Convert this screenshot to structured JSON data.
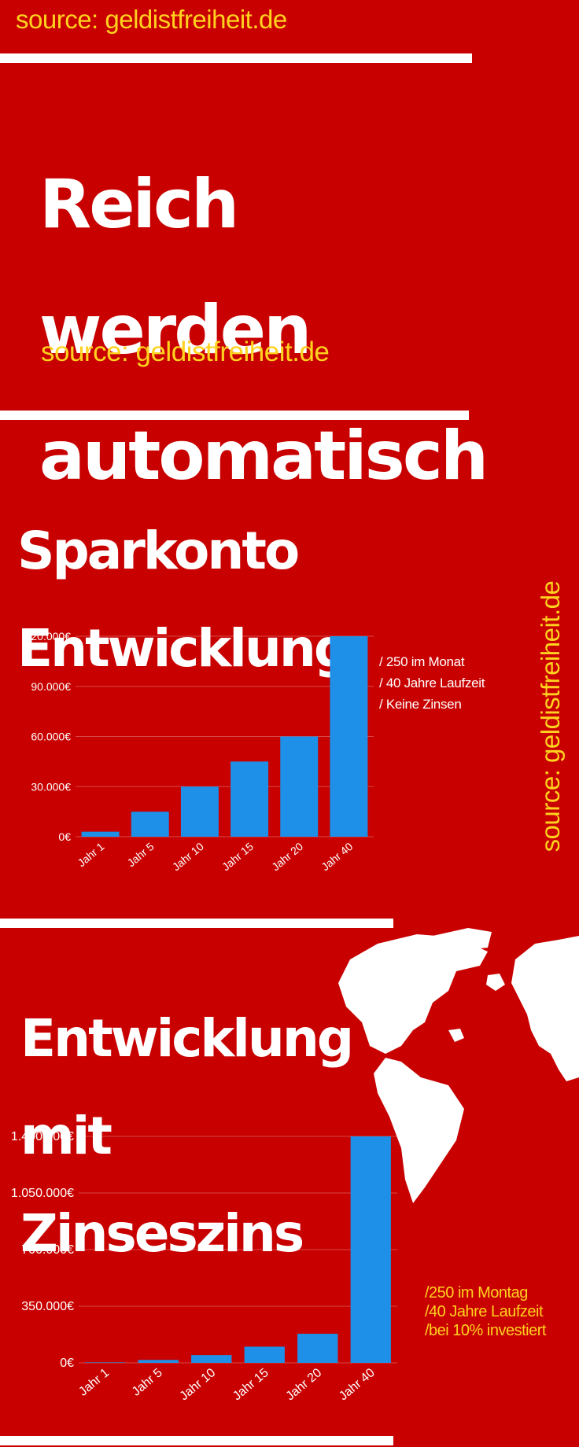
{
  "header": {
    "source_top": "source: geldistfreiheit.de",
    "title_lines": [
      "Reich",
      "werden",
      "automatisch"
    ],
    "source_sub": "source: geldistfreiheit.de"
  },
  "side_source": "source: geldistfreiheit.de",
  "section1": {
    "title_lines": [
      "Sparkonto",
      "Entwicklung"
    ],
    "notes": [
      "/ 250 im Monat",
      "/ 40 Jahre Laufzeit",
      "/ Keine Zinsen"
    ]
  },
  "section2": {
    "title_lines": [
      "Entwicklung",
      "mit",
      "Zinseszins"
    ],
    "notes": [
      "/250 im Montag",
      "/40 Jahre Laufzeit",
      "/bei 10% investiert"
    ]
  },
  "world_map_icon": "world-map",
  "colors": {
    "background": "#c80000",
    "bar": "#1e90e8",
    "source_text": "#ffd21f",
    "text": "#ffffff"
  },
  "chart_data": [
    {
      "type": "bar",
      "categories": [
        "Jahr 1",
        "Jahr 5",
        "Jahr 10",
        "Jahr 15",
        "Jahr 20",
        "Jahr 40"
      ],
      "values": [
        3000,
        15000,
        30000,
        45000,
        60000,
        120000
      ],
      "yticks": [
        "0€",
        "30.000€",
        "60.000€",
        "90.000€",
        "120.000€"
      ],
      "ylim": [
        0,
        120000
      ],
      "grid": true,
      "title": "",
      "xlabel": "",
      "ylabel": ""
    },
    {
      "type": "bar",
      "categories": [
        "Jahr 1",
        "Jahr 5",
        "Jahr 10",
        "Jahr 15",
        "Jahr 20",
        "Jahr 40"
      ],
      "values": [
        3000,
        18000,
        48000,
        100000,
        180000,
        1400000
      ],
      "yticks": [
        "0€",
        "350.000€",
        "700.000€",
        "1.050.000€",
        "1.400.000€"
      ],
      "ylim": [
        0,
        1400000
      ],
      "grid": true,
      "title": "",
      "xlabel": "",
      "ylabel": ""
    }
  ]
}
